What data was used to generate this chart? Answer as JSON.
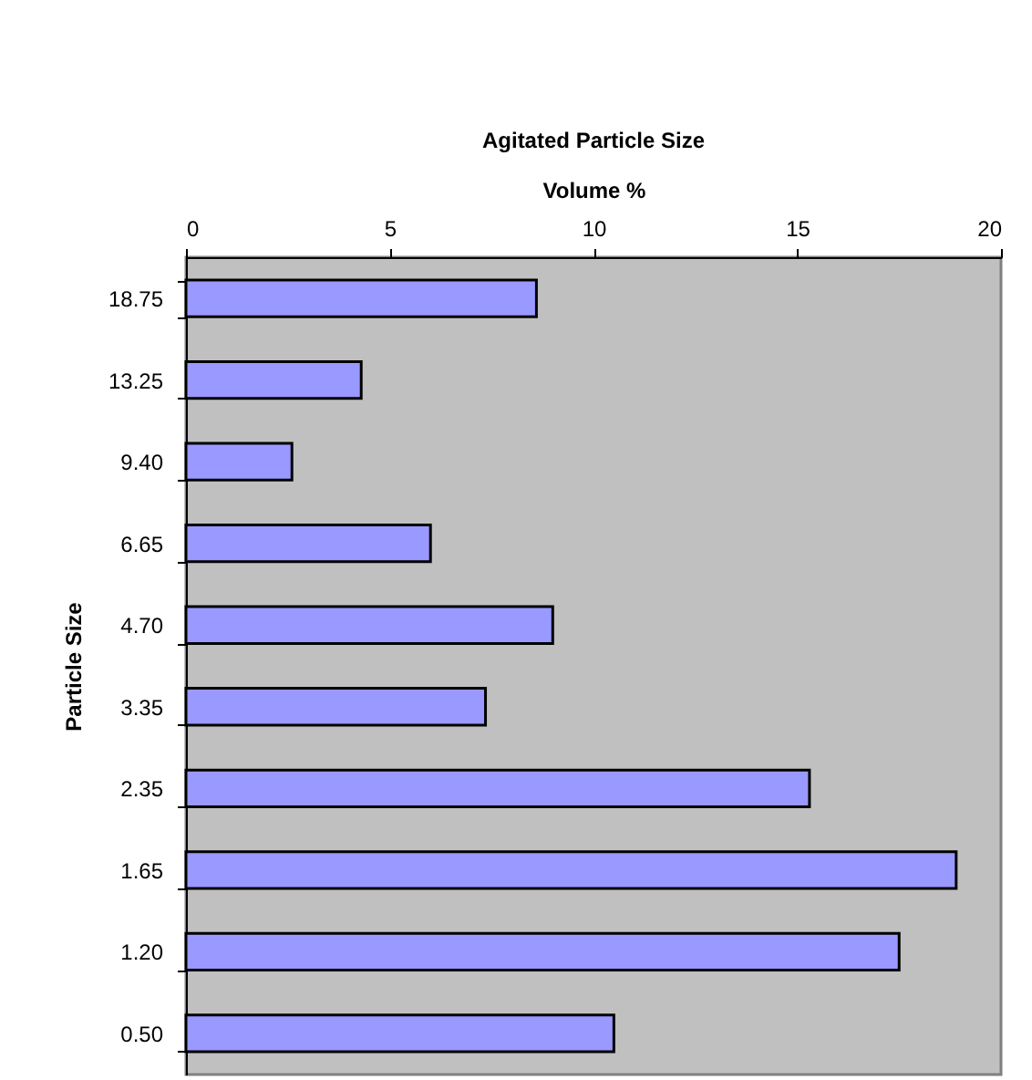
{
  "chart_data": {
    "type": "bar",
    "orientation": "horizontal",
    "title": "Agitated Particle Size",
    "xlabel": "Volume %",
    "ylabel": "Particle Size",
    "categories": [
      "18.75",
      "13.25",
      "9.40",
      "6.65",
      "4.70",
      "3.35",
      "2.35",
      "1.65",
      "1.20",
      "0.50"
    ],
    "values": [
      8.6,
      4.3,
      2.6,
      6.0,
      9.0,
      7.35,
      15.3,
      18.9,
      17.5,
      10.5
    ],
    "color": "#9999ff",
    "xlim": [
      0,
      20
    ],
    "xticks": [
      0,
      5,
      10,
      15,
      20
    ],
    "grid": false
  }
}
